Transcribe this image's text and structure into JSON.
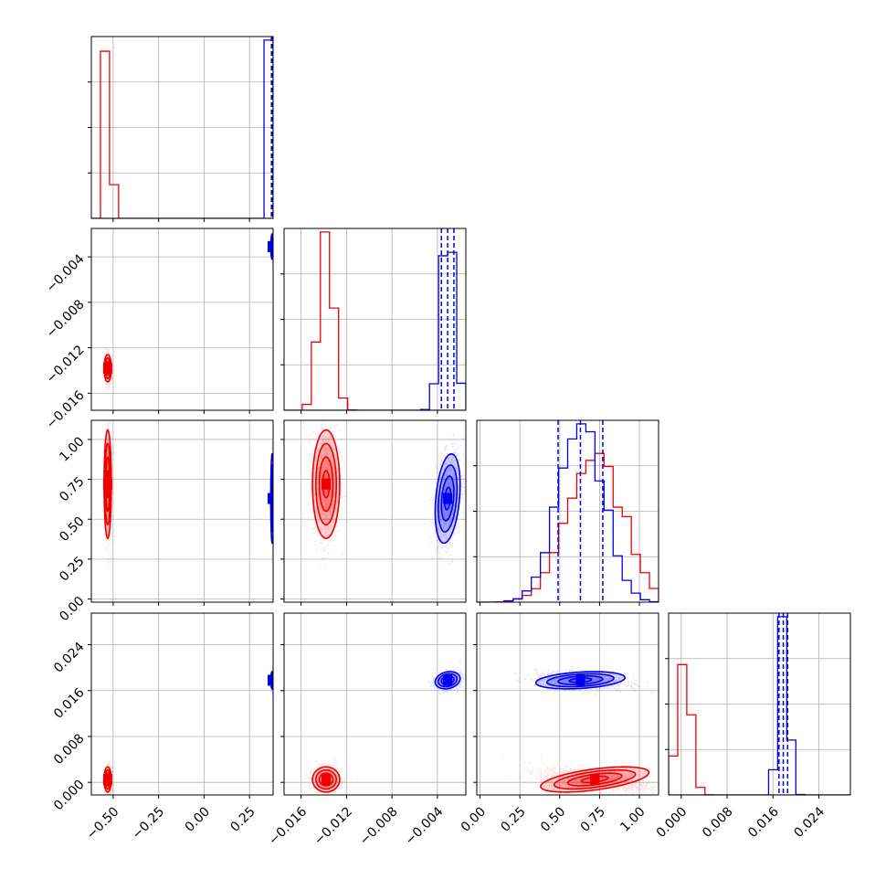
{
  "colors": {
    "red": "#ee0000",
    "blue": "#0000ee",
    "grid": "#b0b0b0"
  },
  "chart_data": {
    "type": "corner",
    "title": "",
    "grid": true,
    "parameters": [
      {
        "range": [
          -0.62,
          0.38
        ],
        "ticks": [
          -0.5,
          -0.25,
          0.0,
          0.25
        ],
        "tick_labels": [
          "−0.50",
          "−0.25",
          "0.00",
          "0.25"
        ]
      },
      {
        "range": [
          -0.0175,
          -0.0015
        ],
        "ticks": [
          -0.016,
          -0.012,
          -0.008,
          -0.004
        ],
        "tick_labels": [
          "−0.016",
          "−0.012",
          "−0.008",
          "−0.004"
        ]
      },
      {
        "range": [
          -0.02,
          1.12
        ],
        "ticks": [
          0.0,
          0.25,
          0.5,
          0.75,
          1.0
        ],
        "tick_labels": [
          "0.00",
          "0.25",
          "0.50",
          "0.75",
          "1.00"
        ]
      },
      {
        "range": [
          -0.0022,
          0.0295
        ],
        "ticks": [
          0.0,
          0.008,
          0.016,
          0.024
        ],
        "tick_labels": [
          "0.000",
          "0.008",
          "0.016",
          "0.024"
        ]
      }
    ],
    "series": [
      {
        "color": "red",
        "mean": [
          -0.53,
          -0.0138,
          0.72,
          0.0005
        ],
        "sd": [
          0.01,
          0.0006,
          0.17,
          0.0011
        ],
        "corr": [
          [
            0,
            1,
            0.0
          ],
          [
            0,
            2,
            0.0
          ],
          [
            0,
            3,
            0.0
          ],
          [
            1,
            2,
            0.0
          ],
          [
            1,
            3,
            0.0
          ],
          [
            2,
            3,
            -0.55
          ]
        ],
        "quantile_lines": false
      },
      {
        "color": "blue",
        "mean": [
          0.375,
          -0.0031,
          0.63,
          0.0178
        ],
        "sd": [
          0.004,
          0.00055,
          0.14,
          0.00075
        ],
        "corr": [
          [
            0,
            1,
            0.0
          ],
          [
            0,
            2,
            0.0
          ],
          [
            0,
            3,
            0.0
          ],
          [
            1,
            2,
            0.3
          ],
          [
            1,
            3,
            0.2
          ],
          [
            2,
            3,
            -0.3
          ]
        ],
        "quantile_lines": true
      }
    ]
  }
}
